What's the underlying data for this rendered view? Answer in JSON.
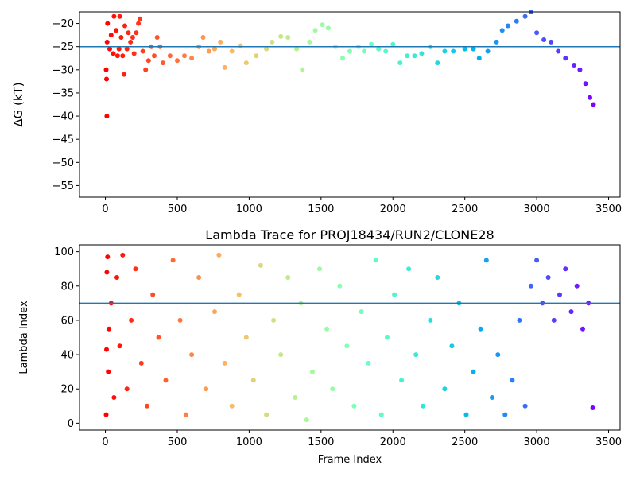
{
  "chart_data": [
    {
      "type": "scatter",
      "title": "",
      "xlabel": "",
      "ylabel": "ΔG (kT)",
      "xlim": [
        -180,
        3580
      ],
      "ylim": [
        -57.5,
        -17.5
      ],
      "xticks": [
        0,
        500,
        1000,
        1500,
        2000,
        2500,
        3000,
        3500
      ],
      "yticks": [
        -20,
        -25,
        -30,
        -35,
        -40,
        -45,
        -50,
        -55
      ],
      "hline": -25,
      "hline_color": "#1f77b4",
      "colormap": "rainbow",
      "grid": false,
      "series": [
        {
          "points": [
            [
              5,
              -30
            ],
            [
              8,
              -32
            ],
            [
              10,
              -40
            ],
            [
              12,
              -24
            ],
            [
              15,
              -20
            ],
            [
              30,
              -25.5
            ],
            [
              40,
              -22.5
            ],
            [
              55,
              -26.5
            ],
            [
              60,
              -18.5
            ],
            [
              75,
              -21.5
            ],
            [
              85,
              -27
            ],
            [
              95,
              -25.5
            ],
            [
              100,
              -18.5
            ],
            [
              110,
              -23
            ],
            [
              120,
              -27
            ],
            [
              130,
              -31
            ],
            [
              135,
              -20.5
            ],
            [
              150,
              -25.5
            ],
            [
              160,
              -22
            ],
            [
              175,
              -24
            ],
            [
              190,
              -23
            ],
            [
              200,
              -26.5
            ],
            [
              215,
              -22
            ],
            [
              230,
              -20
            ],
            [
              240,
              -19
            ],
            [
              260,
              -26
            ],
            [
              280,
              -30
            ],
            [
              300,
              -28
            ],
            [
              320,
              -25
            ],
            [
              340,
              -27
            ],
            [
              360,
              -23
            ],
            [
              380,
              -25
            ],
            [
              400,
              -28.5
            ],
            [
              450,
              -27
            ],
            [
              500,
              -28
            ],
            [
              550,
              -27
            ],
            [
              600,
              -27.5
            ],
            [
              650,
              -25
            ],
            [
              680,
              -23
            ],
            [
              720,
              -26
            ],
            [
              760,
              -25.5
            ],
            [
              800,
              -24
            ],
            [
              830,
              -29.5
            ],
            [
              880,
              -26
            ],
            [
              940,
              -24.8
            ],
            [
              980,
              -28.5
            ],
            [
              1050,
              -27
            ],
            [
              1120,
              -25.5
            ],
            [
              1160,
              -24
            ],
            [
              1220,
              -22.8
            ],
            [
              1270,
              -23
            ],
            [
              1330,
              -25.5
            ],
            [
              1370,
              -30
            ],
            [
              1420,
              -24
            ],
            [
              1460,
              -21.5
            ],
            [
              1510,
              -20.3
            ],
            [
              1550,
              -21
            ],
            [
              1600,
              -25
            ],
            [
              1650,
              -27.5
            ],
            [
              1700,
              -26
            ],
            [
              1760,
              -25
            ],
            [
              1800,
              -26
            ],
            [
              1850,
              -24.5
            ],
            [
              1900,
              -25.5
            ],
            [
              1950,
              -26
            ],
            [
              2000,
              -24.5
            ],
            [
              2050,
              -28.5
            ],
            [
              2100,
              -27
            ],
            [
              2150,
              -27
            ],
            [
              2200,
              -26.5
            ],
            [
              2260,
              -25
            ],
            [
              2310,
              -28.5
            ],
            [
              2360,
              -26
            ],
            [
              2420,
              -26
            ],
            [
              2500,
              -25.5
            ],
            [
              2560,
              -25.5
            ],
            [
              2600,
              -27.5
            ],
            [
              2660,
              -26
            ],
            [
              2720,
              -24
            ],
            [
              2760,
              -21.5
            ],
            [
              2800,
              -20.5
            ],
            [
              2860,
              -19.5
            ],
            [
              2920,
              -18.5
            ],
            [
              2960,
              -17.5
            ],
            [
              3000,
              -22
            ],
            [
              3050,
              -23.5
            ],
            [
              3100,
              -24
            ],
            [
              3150,
              -26
            ],
            [
              3200,
              -27.5
            ],
            [
              3260,
              -29
            ],
            [
              3300,
              -30
            ],
            [
              3340,
              -33
            ],
            [
              3370,
              -36
            ],
            [
              3395,
              -37.5
            ]
          ]
        }
      ]
    },
    {
      "type": "scatter",
      "title": "Lambda Trace for PROJ18434/RUN2/CLONE28",
      "xlabel": "Frame Index",
      "ylabel": "Lambda Index",
      "xlim": [
        -180,
        3580
      ],
      "ylim": [
        -4,
        104
      ],
      "xticks": [
        0,
        500,
        1000,
        1500,
        2000,
        2500,
        3000,
        3500
      ],
      "yticks": [
        0,
        20,
        40,
        60,
        80,
        100
      ],
      "hline": 70,
      "hline_color": "#1f77b4",
      "colormap": "rainbow",
      "grid": false,
      "series": [
        {
          "points": [
            [
              5,
              5
            ],
            [
              8,
              43
            ],
            [
              10,
              88
            ],
            [
              15,
              97
            ],
            [
              20,
              30
            ],
            [
              25,
              55
            ],
            [
              40,
              70
            ],
            [
              60,
              15
            ],
            [
              80,
              85
            ],
            [
              100,
              45
            ],
            [
              120,
              98
            ],
            [
              150,
              20
            ],
            [
              180,
              60
            ],
            [
              210,
              90
            ],
            [
              250,
              35
            ],
            [
              290,
              10
            ],
            [
              330,
              75
            ],
            [
              370,
              50
            ],
            [
              420,
              25
            ],
            [
              470,
              95
            ],
            [
              520,
              60
            ],
            [
              560,
              5
            ],
            [
              600,
              40
            ],
            [
              650,
              85
            ],
            [
              700,
              20
            ],
            [
              760,
              65
            ],
            [
              790,
              98
            ],
            [
              830,
              35
            ],
            [
              880,
              10
            ],
            [
              930,
              75
            ],
            [
              980,
              50
            ],
            [
              1030,
              25
            ],
            [
              1080,
              92
            ],
            [
              1120,
              5
            ],
            [
              1170,
              60
            ],
            [
              1220,
              40
            ],
            [
              1270,
              85
            ],
            [
              1320,
              15
            ],
            [
              1360,
              70
            ],
            [
              1400,
              2
            ],
            [
              1440,
              30
            ],
            [
              1490,
              90
            ],
            [
              1540,
              55
            ],
            [
              1580,
              20
            ],
            [
              1630,
              80
            ],
            [
              1680,
              45
            ],
            [
              1730,
              10
            ],
            [
              1780,
              65
            ],
            [
              1830,
              35
            ],
            [
              1880,
              95
            ],
            [
              1920,
              5
            ],
            [
              1960,
              50
            ],
            [
              2010,
              75
            ],
            [
              2060,
              25
            ],
            [
              2110,
              90
            ],
            [
              2160,
              40
            ],
            [
              2210,
              10
            ],
            [
              2260,
              60
            ],
            [
              2310,
              85
            ],
            [
              2360,
              20
            ],
            [
              2410,
              45
            ],
            [
              2460,
              70
            ],
            [
              2510,
              5
            ],
            [
              2560,
              30
            ],
            [
              2610,
              55
            ],
            [
              2650,
              95
            ],
            [
              2690,
              15
            ],
            [
              2730,
              40
            ],
            [
              2780,
              5
            ],
            [
              2830,
              25
            ],
            [
              2880,
              60
            ],
            [
              2920,
              10
            ],
            [
              2960,
              80
            ],
            [
              3000,
              95
            ],
            [
              3040,
              70
            ],
            [
              3080,
              85
            ],
            [
              3120,
              60
            ],
            [
              3160,
              75
            ],
            [
              3200,
              90
            ],
            [
              3240,
              65
            ],
            [
              3280,
              80
            ],
            [
              3320,
              55
            ],
            [
              3360,
              70
            ],
            [
              3390,
              9
            ]
          ]
        }
      ]
    }
  ]
}
